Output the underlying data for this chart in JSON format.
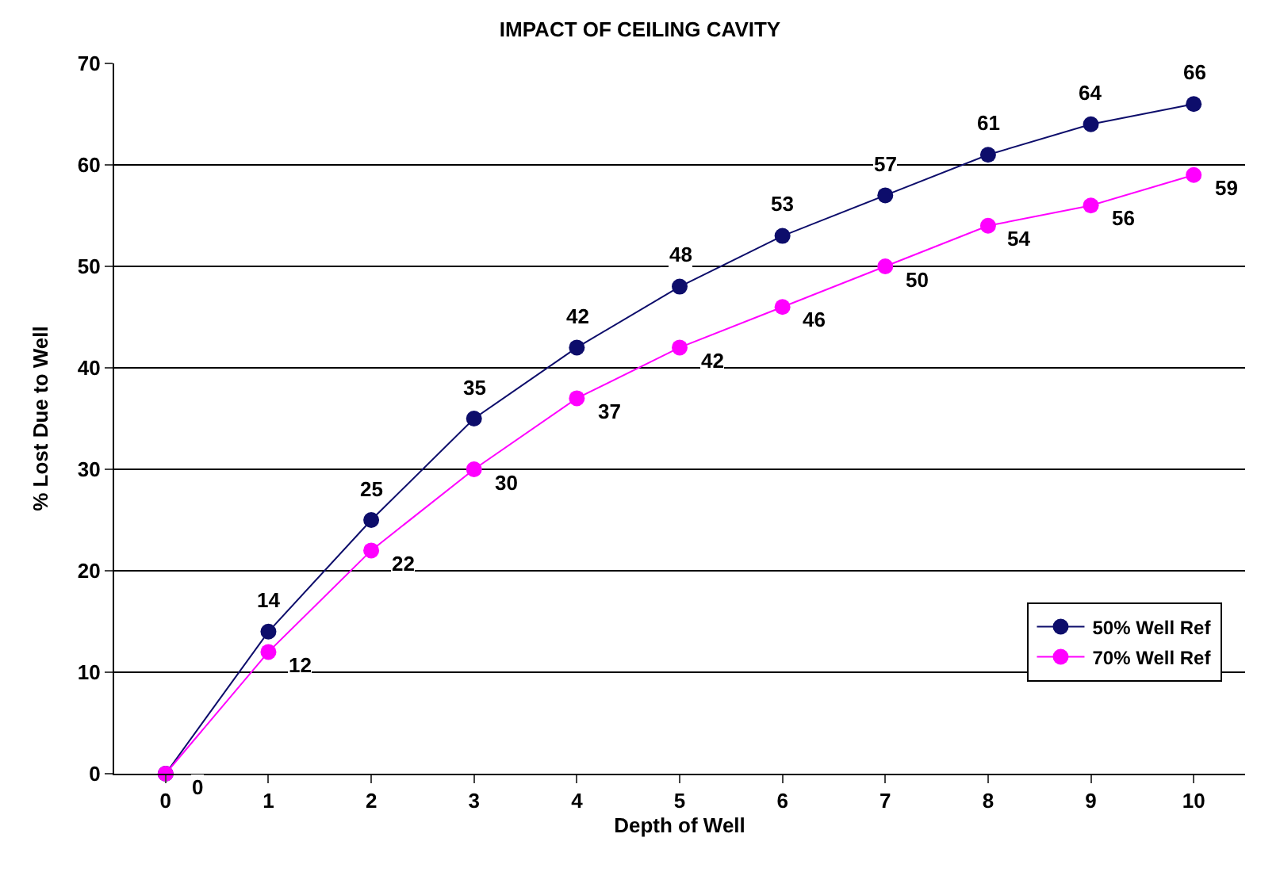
{
  "chart_data": {
    "type": "line",
    "title": "IMPACT OF CEILING CAVITY",
    "xlabel": "Depth of Well",
    "ylabel": "% Lost Due to Well",
    "x": [
      0,
      1,
      2,
      3,
      4,
      5,
      6,
      7,
      8,
      9,
      10
    ],
    "series": [
      {
        "name": "50% Well Ref",
        "color": "#0d0d6b",
        "values": [
          0,
          14,
          25,
          35,
          42,
          48,
          53,
          57,
          61,
          64,
          66
        ],
        "value_labels": [
          null,
          "14",
          "25",
          "35",
          "42",
          "48",
          "53",
          "57",
          "61",
          "64",
          "66"
        ]
      },
      {
        "name": "70% Well Ref",
        "color": "#ff00ff",
        "values": [
          0,
          12,
          22,
          30,
          37,
          42,
          46,
          50,
          54,
          56,
          59
        ],
        "value_labels": [
          "0",
          "12",
          "22",
          "30",
          "37",
          "42",
          "46",
          "50",
          "54",
          "56",
          "59"
        ]
      }
    ],
    "xlim": [
      -0.5,
      10.5
    ],
    "xticks": [
      0,
      1,
      2,
      3,
      4,
      5,
      6,
      7,
      8,
      9,
      10
    ],
    "ylim": [
      0,
      70
    ],
    "yticks": [
      0,
      10,
      20,
      30,
      40,
      50,
      60,
      70
    ],
    "grid": "y",
    "legend": "bottom right",
    "marker": "circle",
    "line_style": "solid"
  }
}
